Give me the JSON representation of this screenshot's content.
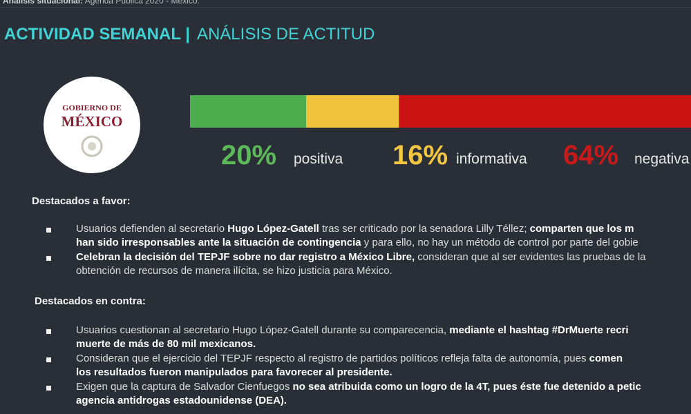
{
  "header": {
    "context_label": "Análisis situacional:",
    "context": "Agenda Pública 2020 - México.",
    "title": "ACTIVIDAD SEMANAL |",
    "subtitle": "ANÁLISIS DE ACTITUD"
  },
  "logo": {
    "line1": "GOBIERNO DE",
    "line2": "MÉXICO"
  },
  "sentiment": {
    "values": [
      20,
      16,
      64
    ],
    "value_labels": [
      "20%",
      "16%",
      "64%"
    ],
    "names": [
      "positiva",
      "informativa",
      "negativa"
    ],
    "colors": [
      "#4cae4f",
      "#f1c33c",
      "#cc1313"
    ],
    "label_colors": [
      "#5dba5a",
      "#f2c640",
      "#c81a1a"
    ]
  },
  "sections": [
    {
      "heading": "Destacados a favor:",
      "items": [
        {
          "lines": [
            [
              {
                "text": "Usuarios defienden al secretario ",
                "bold": false
              },
              {
                "text": "Hugo López-Gatell",
                "bold": true
              },
              {
                "text": " tras ser criticado por la senadora Lilly Téllez; ",
                "bold": false
              },
              {
                "text": "comparten que los m",
                "bold": true
              }
            ],
            [
              {
                "text": "han sido irresponsables ante la situación de contingencia",
                "bold": true
              },
              {
                "text": " y para ello, no hay un método de control por parte del gobie",
                "bold": false
              }
            ]
          ]
        },
        {
          "lines": [
            [
              {
                "text": "Celebran la decisión del TEPJF sobre no dar registro a México Libre,",
                "bold": true
              },
              {
                "text": " consideran que al ser evidentes las pruebas de la",
                "bold": false
              }
            ],
            [
              {
                "text": "obtención de recursos de manera ilícita, se hizo justicia para México.",
                "bold": false
              }
            ]
          ]
        }
      ]
    },
    {
      "heading": "Destacados en contra:",
      "items": [
        {
          "lines": [
            [
              {
                "text": "Usuarios cuestionan al secretario Hugo López-Gatell durante su comparecencia, ",
                "bold": false
              },
              {
                "text": "mediante el hashtag #DrMuerte recri",
                "bold": true
              }
            ],
            [
              {
                "text": "muerte de más de 80 mil mexicanos.",
                "bold": true
              }
            ]
          ]
        },
        {
          "lines": [
            [
              {
                "text": "Consideran que el ejercicio del TEPJF respecto al registro de partidos políticos refleja falta de autonomía, pues ",
                "bold": false
              },
              {
                "text": "comen",
                "bold": true
              }
            ],
            [
              {
                "text": "los resultados fueron manipulados para favorecer al presidente.",
                "bold": true
              }
            ]
          ]
        },
        {
          "lines": [
            [
              {
                "text": "Exigen que la captura de Salvador Cienfuegos ",
                "bold": false
              },
              {
                "text": "no sea atribuida como un logro de la 4T, pues éste fue detenido a petic",
                "bold": true
              }
            ],
            [
              {
                "text": "agencia antidrogas estadounidense (DEA).",
                "bold": true
              }
            ]
          ]
        }
      ]
    }
  ]
}
